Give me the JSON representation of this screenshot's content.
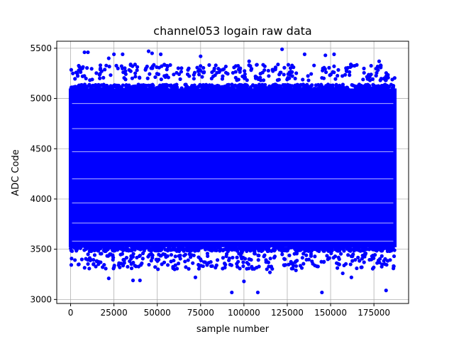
{
  "chart_data": {
    "type": "scatter",
    "title": "channel053 logain raw data",
    "xlabel": "sample number",
    "ylabel": "ADC Code",
    "xlim": [
      -8000,
      195000
    ],
    "ylim": [
      2960,
      5570
    ],
    "x_ticks": [
      0,
      25000,
      50000,
      75000,
      100000,
      125000,
      150000,
      175000
    ],
    "x_tick_labels": [
      "0",
      "25000",
      "50000",
      "75000",
      "100000",
      "125000",
      "150000",
      "175000"
    ],
    "y_ticks": [
      3000,
      3500,
      4000,
      4500,
      5000,
      5500
    ],
    "y_tick_labels": [
      "3000",
      "3500",
      "4000",
      "4500",
      "5000",
      "5500"
    ],
    "grid": true,
    "legend": "none",
    "series": [
      {
        "color": "#0000ff",
        "marker": "circle",
        "x_range": [
          0,
          187000
        ],
        "dense_band": [
          3520,
          5100
        ],
        "dense_levels": [
          3530,
          3580,
          3630,
          3700,
          3760,
          3850,
          3890,
          3960,
          4060,
          4110,
          4200,
          4340,
          4380,
          4470,
          4560,
          4640,
          4700,
          4800,
          4860,
          4950,
          5020,
          5080
        ],
        "sparse_upper_band": [
          5180,
          5340
        ],
        "sparse_lower_band": [
          3300,
          3460
        ],
        "outliers": [
          [
            8000,
            5460
          ],
          [
            10000,
            5460
          ],
          [
            22000,
            5400
          ],
          [
            25000,
            5440
          ],
          [
            30000,
            5440
          ],
          [
            45000,
            5470
          ],
          [
            47000,
            5450
          ],
          [
            52000,
            5440
          ],
          [
            75000,
            5420
          ],
          [
            103000,
            5370
          ],
          [
            122000,
            5490
          ],
          [
            135000,
            5440
          ],
          [
            147000,
            5430
          ],
          [
            152000,
            5440
          ],
          [
            178000,
            5370
          ],
          [
            22000,
            3210
          ],
          [
            36000,
            3190
          ],
          [
            40000,
            3190
          ],
          [
            72000,
            3220
          ],
          [
            93000,
            3070
          ],
          [
            100000,
            3180
          ],
          [
            108000,
            3070
          ],
          [
            145000,
            3070
          ],
          [
            162000,
            3220
          ],
          [
            182000,
            3090
          ],
          [
            60000,
            3300
          ],
          [
            115000,
            3270
          ],
          [
            130000,
            3290
          ],
          [
            157000,
            3260
          ]
        ]
      }
    ]
  }
}
